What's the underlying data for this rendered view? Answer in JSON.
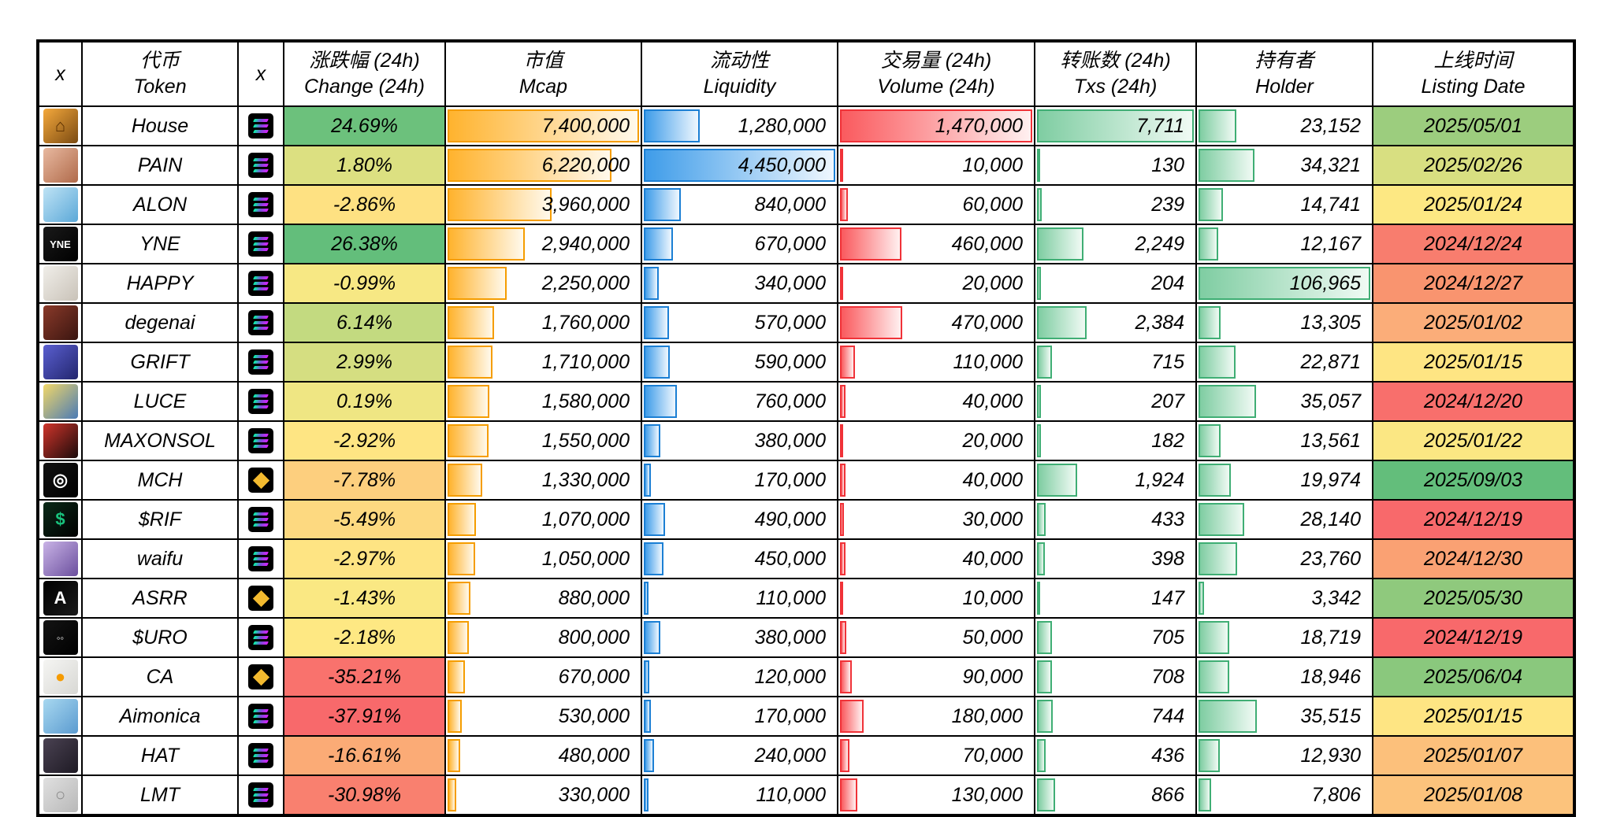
{
  "chart_data": {
    "type": "table",
    "title": "",
    "columns": [
      {
        "id": "avatar",
        "zh": "x",
        "en": ""
      },
      {
        "id": "token",
        "zh": "代币",
        "en": "Token"
      },
      {
        "id": "chain",
        "zh": "x",
        "en": ""
      },
      {
        "id": "change",
        "zh": "涨跌幅 (24h)",
        "en": "Change (24h)"
      },
      {
        "id": "mcap",
        "zh": "市值",
        "en": "Mcap"
      },
      {
        "id": "liquidity",
        "zh": "流动性",
        "en": "Liquidity"
      },
      {
        "id": "volume",
        "zh": "交易量 (24h)",
        "en": "Volume (24h)"
      },
      {
        "id": "txs",
        "zh": "转账数 (24h)",
        "en": "Txs (24h)"
      },
      {
        "id": "holder",
        "zh": "持有者",
        "en": "Holder"
      },
      {
        "id": "listing",
        "zh": "上线时间",
        "en": "Listing Date"
      }
    ],
    "bar_columns": [
      "mcap",
      "liquidity",
      "volume",
      "txs",
      "holder"
    ],
    "bar_colors": {
      "mcap": {
        "fill": "#FFB32E",
        "fade": "#FFF9EC",
        "border": "#F59D00"
      },
      "liquidity": {
        "fill": "#3E9CE9",
        "fade": "#EFF7FE",
        "border": "#1B7FD4"
      },
      "volume": {
        "fill": "#FA5A5E",
        "fade": "#FFF0F0",
        "border": "#F03238"
      },
      "txs": {
        "fill": "#7FCDA2",
        "fade": "#F0FAF4",
        "border": "#3FAE74"
      },
      "holder": {
        "fill": "#7FCDA2",
        "fade": "#F0FAF4",
        "border": "#3FAE74"
      }
    },
    "rows": [
      {
        "token": "House",
        "chain": "solana",
        "change": "24.69%",
        "change_color": "#6CC17C",
        "mcap": "7,400,000",
        "liquidity": "1,280,000",
        "volume": "1,470,000",
        "txs": "7,711",
        "holder": "23,152",
        "listing": "2025/05/01",
        "listing_color": "#9CCD7E",
        "icon_c1": "#F5A93C",
        "icon_c2": "#7A4A12",
        "icon_glyph": "⌂",
        "icon_glyph_color": "#5A2F00"
      },
      {
        "token": "PAIN",
        "chain": "solana",
        "change": "1.80%",
        "change_color": "#DCE081",
        "mcap": "6,220,000",
        "liquidity": "4,450,000",
        "volume": "10,000",
        "txs": "130",
        "holder": "34,321",
        "listing": "2025/02/26",
        "listing_color": "#D8DF81",
        "icon_c1": "#E8B9A0",
        "icon_c2": "#B06A4A",
        "icon_glyph": "",
        "icon_glyph_color": "#ffffff"
      },
      {
        "token": "ALON",
        "chain": "solana",
        "change": "-2.86%",
        "change_color": "#FEE182",
        "mcap": "3,960,000",
        "liquidity": "840,000",
        "volume": "60,000",
        "txs": "239",
        "holder": "14,741",
        "listing": "2025/01/24",
        "listing_color": "#FDE883",
        "icon_c1": "#BFE3F5",
        "icon_c2": "#5BA8D8",
        "icon_glyph": "",
        "icon_glyph_color": "#ffffff"
      },
      {
        "token": "YNE",
        "chain": "solana",
        "change": "26.38%",
        "change_color": "#63BE7B",
        "mcap": "2,940,000",
        "liquidity": "670,000",
        "volume": "460,000",
        "txs": "2,249",
        "holder": "12,167",
        "listing": "2024/12/24",
        "listing_color": "#F87D6E",
        "icon_c1": "#1A1A1A",
        "icon_c2": "#000000",
        "icon_glyph": "YNE",
        "icon_glyph_color": "#ffffff"
      },
      {
        "token": "HAPPY",
        "chain": "solana",
        "change": "-0.99%",
        "change_color": "#F7E884",
        "mcap": "2,250,000",
        "liquidity": "340,000",
        "volume": "20,000",
        "txs": "204",
        "holder": "106,965",
        "listing": "2024/12/27",
        "listing_color": "#F9946F",
        "icon_c1": "#F0EEE9",
        "icon_c2": "#C9C2B8",
        "icon_glyph": "",
        "icon_glyph_color": "#ffffff"
      },
      {
        "token": "degenai",
        "chain": "solana",
        "change": "6.14%",
        "change_color": "#C3DA80",
        "mcap": "1,760,000",
        "liquidity": "570,000",
        "volume": "470,000",
        "txs": "2,384",
        "holder": "13,305",
        "listing": "2025/01/02",
        "listing_color": "#FBAD79",
        "icon_c1": "#8A3A2A",
        "icon_c2": "#3A1510",
        "icon_glyph": "",
        "icon_glyph_color": "#ffffff"
      },
      {
        "token": "GRIFT",
        "chain": "solana",
        "change": "2.99%",
        "change_color": "#D5DE81",
        "mcap": "1,710,000",
        "liquidity": "590,000",
        "volume": "110,000",
        "txs": "715",
        "holder": "22,871",
        "listing": "2025/01/15",
        "listing_color": "#FEE583",
        "icon_c1": "#5A5FD0",
        "icon_c2": "#23266E",
        "icon_glyph": "",
        "icon_glyph_color": "#ffffff"
      },
      {
        "token": "LUCE",
        "chain": "solana",
        "change": "0.19%",
        "change_color": "#EFE683",
        "mcap": "1,580,000",
        "liquidity": "760,000",
        "volume": "40,000",
        "txs": "207",
        "holder": "35,057",
        "listing": "2024/12/20",
        "listing_color": "#F86F6C",
        "icon_c1": "#F2D868",
        "icon_c2": "#4A7AB5",
        "icon_glyph": "",
        "icon_glyph_color": "#ffffff"
      },
      {
        "token": "MAXONSOL",
        "chain": "solana",
        "change": "-2.92%",
        "change_color": "#FEE583",
        "mcap": "1,550,000",
        "liquidity": "380,000",
        "volume": "20,000",
        "txs": "182",
        "holder": "13,561",
        "listing": "2025/01/22",
        "listing_color": "#FBE783",
        "icon_c1": "#D0352B",
        "icon_c2": "#1A0A0A",
        "icon_glyph": "",
        "icon_glyph_color": "#ffffff"
      },
      {
        "token": "MCH",
        "chain": "bnb",
        "change": "-7.78%",
        "change_color": "#FDCF7E",
        "mcap": "1,330,000",
        "liquidity": "170,000",
        "volume": "40,000",
        "txs": "1,924",
        "holder": "19,974",
        "listing": "2025/09/03",
        "listing_color": "#63BE7B",
        "icon_c1": "#111111",
        "icon_c2": "#000000",
        "icon_glyph": "◎",
        "icon_glyph_color": "#ffffff"
      },
      {
        "token": "$RIF",
        "chain": "solana",
        "change": "-5.49%",
        "change_color": "#FDD980",
        "mcap": "1,070,000",
        "liquidity": "490,000",
        "volume": "30,000",
        "txs": "433",
        "holder": "28,140",
        "listing": "2024/12/19",
        "listing_color": "#F8696B",
        "icon_c1": "#0A2A18",
        "icon_c2": "#000000",
        "icon_glyph": "$",
        "icon_glyph_color": "#19C37D"
      },
      {
        "token": "waifu",
        "chain": "solana",
        "change": "-2.97%",
        "change_color": "#FEE483",
        "mcap": "1,050,000",
        "liquidity": "450,000",
        "volume": "40,000",
        "txs": "398",
        "holder": "23,760",
        "listing": "2024/12/30",
        "listing_color": "#FAA173",
        "icon_c1": "#C9B3E6",
        "icon_c2": "#6B4F9E",
        "icon_glyph": "",
        "icon_glyph_color": "#ffffff"
      },
      {
        "token": "ASRR",
        "chain": "bnb",
        "change": "-1.43%",
        "change_color": "#FAE883",
        "mcap": "880,000",
        "liquidity": "110,000",
        "volume": "10,000",
        "txs": "147",
        "holder": "3,342",
        "listing": "2025/05/30",
        "listing_color": "#8FC97D",
        "icon_c1": "#000000",
        "icon_c2": "#1A1A1A",
        "icon_glyph": "A",
        "icon_glyph_color": "#ffffff"
      },
      {
        "token": "$URO",
        "chain": "solana",
        "change": "-2.18%",
        "change_color": "#FEE883",
        "mcap": "800,000",
        "liquidity": "380,000",
        "volume": "50,000",
        "txs": "705",
        "holder": "18,719",
        "listing": "2024/12/19",
        "listing_color": "#F8696B",
        "icon_c1": "#141414",
        "icon_c2": "#000000",
        "icon_glyph": "◦◦",
        "icon_glyph_color": "#ffffff"
      },
      {
        "token": "CA",
        "chain": "bnb",
        "change": "-35.21%",
        "change_color": "#F9726D",
        "mcap": "670,000",
        "liquidity": "120,000",
        "volume": "90,000",
        "txs": "708",
        "holder": "18,946",
        "listing": "2025/06/04",
        "listing_color": "#8AC87D",
        "icon_c1": "#F5F5F3",
        "icon_c2": "#D8D8D4",
        "icon_glyph": "●",
        "icon_glyph_color": "#F59B00"
      },
      {
        "token": "Aimonica",
        "chain": "solana",
        "change": "-37.91%",
        "change_color": "#F8696B",
        "mcap": "530,000",
        "liquidity": "170,000",
        "volume": "180,000",
        "txs": "744",
        "holder": "35,515",
        "listing": "2025/01/15",
        "listing_color": "#FEE583",
        "icon_c1": "#A8D8F0",
        "icon_c2": "#5B9BD0",
        "icon_glyph": "",
        "icon_glyph_color": "#ffffff"
      },
      {
        "token": "HAT",
        "chain": "solana",
        "change": "-16.61%",
        "change_color": "#FBAB76",
        "mcap": "480,000",
        "liquidity": "240,000",
        "volume": "70,000",
        "txs": "436",
        "holder": "12,930",
        "listing": "2025/01/07",
        "listing_color": "#FCC07B",
        "icon_c1": "#4A4252",
        "icon_c2": "#1E1A24",
        "icon_glyph": "",
        "icon_glyph_color": "#ffffff"
      },
      {
        "token": "LMT",
        "chain": "solana",
        "change": "-30.98%",
        "change_color": "#F9806F",
        "mcap": "330,000",
        "liquidity": "110,000",
        "volume": "130,000",
        "txs": "866",
        "holder": "7,806",
        "listing": "2025/01/08",
        "listing_color": "#FCC37C",
        "icon_c1": "#E0E0E0",
        "icon_c2": "#B8B8B8",
        "icon_glyph": "○",
        "icon_glyph_color": "#8A8A8A"
      }
    ]
  }
}
